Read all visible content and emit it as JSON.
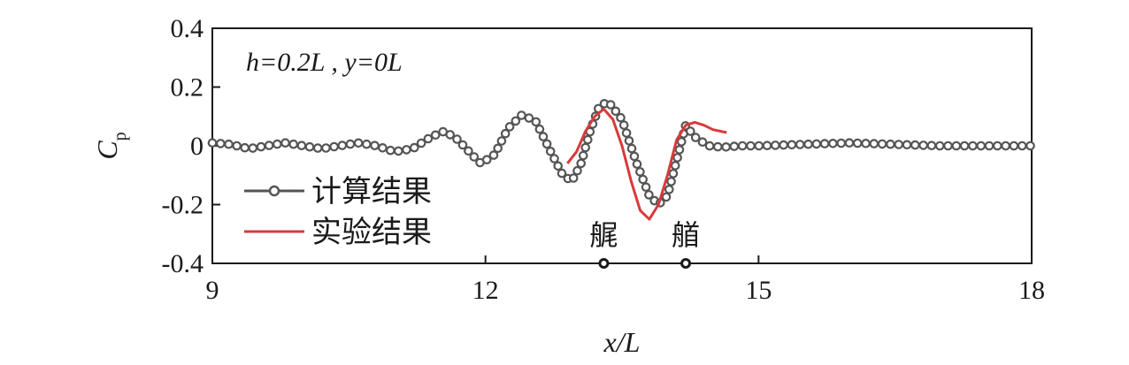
{
  "chart_data": {
    "type": "line",
    "annotation": "h=0.2L , y=0L",
    "xlabel": "x/L",
    "ylabel": {
      "main": "C",
      "sub": "p"
    },
    "xlim": [
      9,
      18
    ],
    "ylim": [
      -0.4,
      0.4
    ],
    "xticks": [
      9,
      12,
      15,
      18
    ],
    "xtick_labels": [
      "9",
      "12",
      "15",
      "18"
    ],
    "yticks": [
      0.4,
      0.2,
      0,
      -0.2,
      -0.4
    ],
    "ytick_labels": [
      "0.4",
      "0.2",
      "0",
      "-0.2",
      "-0.4"
    ],
    "legend_position": "left",
    "series": [
      {
        "name": "计算结果",
        "color": "#555555",
        "marker": "circle",
        "x": [
          9.0,
          9.2,
          9.4,
          9.6,
          9.8,
          10.0,
          10.2,
          10.4,
          10.6,
          10.8,
          11.0,
          11.2,
          11.4,
          11.55,
          11.7,
          11.85,
          11.95,
          12.1,
          12.25,
          12.4,
          12.55,
          12.7,
          12.85,
          12.95,
          13.05,
          13.15,
          13.25,
          13.35,
          13.5,
          13.65,
          13.8,
          13.9,
          14.0,
          14.1,
          14.2,
          14.3,
          14.45,
          14.6,
          14.8,
          15.0,
          15.5,
          16.0,
          16.5,
          17.0,
          17.5,
          18.0
        ],
        "y": [
          0.01,
          0.005,
          -0.01,
          0.0,
          0.01,
          0.0,
          -0.01,
          0.0,
          0.01,
          0.0,
          -0.02,
          -0.01,
          0.03,
          0.05,
          0.02,
          -0.03,
          -0.06,
          -0.03,
          0.06,
          0.105,
          0.085,
          -0.01,
          -0.1,
          -0.12,
          -0.06,
          0.05,
          0.135,
          0.15,
          0.09,
          -0.05,
          -0.17,
          -0.2,
          -0.17,
          -0.05,
          0.07,
          0.03,
          0.0,
          -0.005,
          0.0,
          0.0,
          0.005,
          0.01,
          0.005,
          0.0,
          0.0,
          0.0
        ]
      },
      {
        "name": "实验结果",
        "color": "#d93a3a",
        "marker": "none",
        "x": [
          12.9,
          13.0,
          13.1,
          13.2,
          13.3,
          13.4,
          13.5,
          13.6,
          13.7,
          13.8,
          13.9,
          14.0,
          14.1,
          14.2,
          14.3,
          14.4,
          14.5,
          14.65
        ],
        "y": [
          -0.06,
          -0.02,
          0.05,
          0.1,
          0.125,
          0.09,
          0.0,
          -0.12,
          -0.22,
          -0.25,
          -0.2,
          -0.1,
          0.02,
          0.07,
          0.08,
          0.07,
          0.055,
          0.045
        ]
      }
    ],
    "markers": [
      {
        "label": "艉",
        "x": 13.3
      },
      {
        "label": "艏",
        "x": 14.2
      }
    ]
  }
}
